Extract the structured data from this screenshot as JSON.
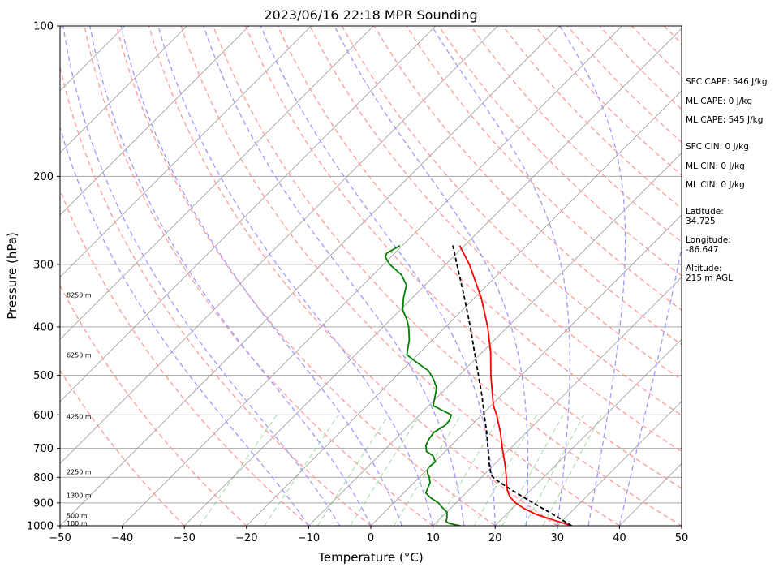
{
  "chart_data": {
    "type": "line",
    "title": "2023/06/16 22:18 MPR Sounding",
    "xlabel": "Temperature (°C)",
    "ylabel": "Pressure (hPa)",
    "xlim": [
      -50,
      50
    ],
    "ylim": [
      1000,
      100
    ],
    "y_scale": "log",
    "xticks": [
      -50,
      -40,
      -30,
      -20,
      -10,
      0,
      10,
      20,
      30,
      40,
      50
    ],
    "xtick_labels": [
      "−50",
      "−40",
      "−30",
      "−20",
      "−10",
      "0",
      "10",
      "20",
      "30",
      "40",
      "50"
    ],
    "yticks": [
      100,
      200,
      300,
      400,
      500,
      600,
      700,
      800,
      900,
      1000
    ],
    "ytick_labels": [
      "100",
      "200",
      "300",
      "400",
      "500",
      "600",
      "700",
      "800",
      "900",
      "1000"
    ],
    "grid": true,
    "series": [
      {
        "role": "temperature",
        "color": "#ff0000",
        "points": [
          [
            1000,
            32.3
          ],
          [
            975,
            28.6
          ],
          [
            950,
            24.9
          ],
          [
            925,
            22.0
          ],
          [
            900,
            19.6
          ],
          [
            875,
            17.7
          ],
          [
            850,
            16.3
          ],
          [
            825,
            15.1
          ],
          [
            800,
            14.0
          ],
          [
            775,
            12.8
          ],
          [
            750,
            11.5
          ],
          [
            700,
            8.7
          ],
          [
            650,
            5.8
          ],
          [
            600,
            2.4
          ],
          [
            575,
            0.4
          ],
          [
            550,
            -1.3
          ],
          [
            500,
            -4.9
          ],
          [
            450,
            -8.6
          ],
          [
            400,
            -13.2
          ],
          [
            350,
            -18.9
          ],
          [
            300,
            -26.2
          ],
          [
            275,
            -30.8
          ]
        ]
      },
      {
        "role": "dewpoint",
        "color": "#008000",
        "points": [
          [
            1000,
            14.4
          ],
          [
            990,
            12.3
          ],
          [
            980,
            11.4
          ],
          [
            965,
            11.0
          ],
          [
            940,
            10.1
          ],
          [
            920,
            8.6
          ],
          [
            900,
            7.2
          ],
          [
            880,
            5.2
          ],
          [
            860,
            3.6
          ],
          [
            845,
            3.2
          ],
          [
            820,
            2.6
          ],
          [
            800,
            1.6
          ],
          [
            780,
            0.4
          ],
          [
            765,
            -0.1
          ],
          [
            745,
            0.1
          ],
          [
            725,
            -1.2
          ],
          [
            710,
            -3.0
          ],
          [
            690,
            -4.1
          ],
          [
            670,
            -4.6
          ],
          [
            650,
            -4.9
          ],
          [
            630,
            -4.2
          ],
          [
            615,
            -4.3
          ],
          [
            600,
            -4.9
          ],
          [
            575,
            -9.3
          ],
          [
            545,
            -10.8
          ],
          [
            530,
            -11.6
          ],
          [
            510,
            -13.4
          ],
          [
            490,
            -15.6
          ],
          [
            470,
            -19.1
          ],
          [
            455,
            -21.7
          ],
          [
            440,
            -22.7
          ],
          [
            425,
            -23.7
          ],
          [
            400,
            -25.9
          ],
          [
            385,
            -27.6
          ],
          [
            370,
            -29.6
          ],
          [
            350,
            -31.4
          ],
          [
            330,
            -33.0
          ],
          [
            315,
            -35.4
          ],
          [
            300,
            -39.0
          ],
          [
            290,
            -40.9
          ],
          [
            285,
            -41.3
          ],
          [
            275,
            -40.4
          ]
        ]
      },
      {
        "role": "parcel",
        "color": "#000000",
        "dashed": true,
        "points": [
          [
            1000,
            32.3
          ],
          [
            950,
            27.6
          ],
          [
            900,
            22.4
          ],
          [
            850,
            17.1
          ],
          [
            805,
            12.3
          ],
          [
            790,
            11.1
          ],
          [
            750,
            9.0
          ],
          [
            700,
            6.4
          ],
          [
            650,
            3.6
          ],
          [
            600,
            0.4
          ],
          [
            550,
            -3.0
          ],
          [
            500,
            -6.9
          ],
          [
            450,
            -11.2
          ],
          [
            400,
            -16.0
          ],
          [
            350,
            -21.6
          ],
          [
            300,
            -28.2
          ],
          [
            275,
            -31.9
          ]
        ]
      }
    ],
    "height_labels": [
      "100 m",
      "500 m",
      "1300 m",
      "2250 m",
      "4250 m",
      "6250 m",
      "8250 m"
    ],
    "annotations": {
      "sfc_cape": "SFC CAPE: 546 J/kg",
      "ml_cape_1": "ML CAPE: 0 J/kg",
      "ml_cape_2": "ML CAPE: 545 J/kg",
      "sfc_cin": "SFC CIN: 0 J/kg",
      "ml_cin_1": "ML CIN: 0 J/kg",
      "ml_cin_2": "ML CIN: 0 J/kg",
      "latitude_label": "Latitude:",
      "latitude_value": "34.725",
      "longitude_label": "Longitude:",
      "longitude_value": "-86.647",
      "altitude_label": "Altitude:",
      "altitude_value": "215 m AGL"
    },
    "colors": {
      "dry_adiabat": "#ff9999",
      "moist_adiabat": "#9999ff",
      "mixing_ratio": "#66bb66",
      "isotherm": "#999999",
      "isobar": "#aaaaaa"
    }
  }
}
